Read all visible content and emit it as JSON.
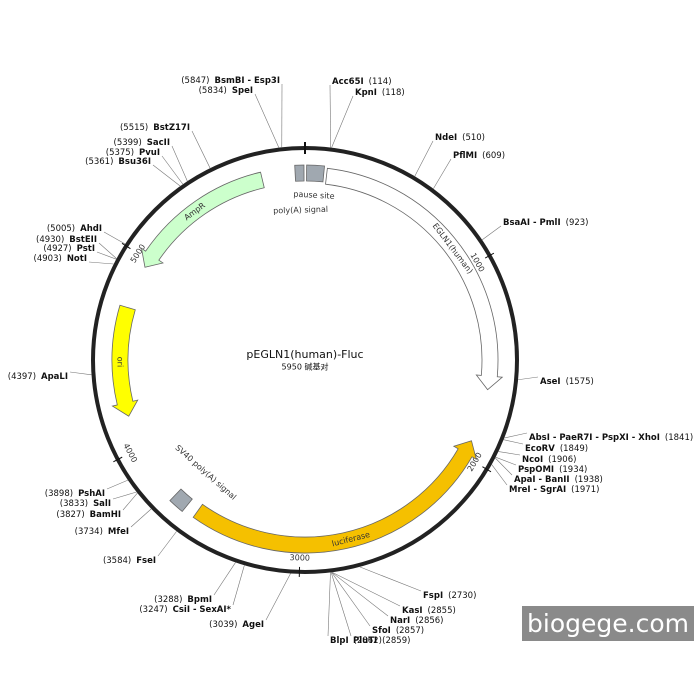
{
  "plasmid": {
    "name": "pEGLN1(human)-Fluc",
    "length": {
      "value": 5950,
      "label": "5950 碱基对"
    },
    "ticks": [
      1000,
      2000,
      3000,
      4000,
      5000
    ],
    "features": [
      {
        "name": "pause site",
        "start": 8,
        "end": 95,
        "direction": "none",
        "color": "#a0a8b0"
      },
      {
        "name": "poly(A) signal",
        "start": 5900,
        "end": 5945,
        "direction": "none",
        "color": "#a0a8b0"
      },
      {
        "name": "EGLN1(human)",
        "start": 110,
        "end": 1640,
        "direction": "forward",
        "color": "#ffffff"
      },
      {
        "name": "luciferase",
        "start": 1915,
        "end": 3560,
        "direction": "reverse",
        "color": "#f5c000"
      },
      {
        "name": "SV40 poly(A) signal",
        "start": 3620,
        "end": 3700,
        "direction": "none",
        "color": "#a0a8b0"
      },
      {
        "name": "ori",
        "start": 4170,
        "end": 4735,
        "direction": "reverse",
        "color": "#ffff00"
      },
      {
        "name": "AmpR",
        "start": 4960,
        "end": 5730,
        "direction": "reverse",
        "color": "#ccffcc"
      }
    ],
    "sites": [
      {
        "name": "Acc65I",
        "position": {
          "value": 114,
          "label": "(114)"
        }
      },
      {
        "name": "KpnI",
        "position": {
          "value": 118,
          "label": "(118)"
        }
      },
      {
        "name": "NdeI",
        "position": {
          "value": 510,
          "label": "(510)"
        }
      },
      {
        "name": "PflMI",
        "position": {
          "value": 609,
          "label": "(609)"
        }
      },
      {
        "name": "BsaAI - PmlI",
        "position": {
          "value": 923,
          "label": "(923)"
        }
      },
      {
        "name": "AseI",
        "position": {
          "value": 1575,
          "label": "(1575)"
        }
      },
      {
        "name": "AbsI - PaeR7I - PspXI - XhoI",
        "position": {
          "value": 1841,
          "label": "(1841)"
        }
      },
      {
        "name": "EcoRV",
        "position": {
          "value": 1849,
          "label": "(1849)"
        }
      },
      {
        "name": "NcoI",
        "position": {
          "value": 1906,
          "label": "(1906)"
        }
      },
      {
        "name": "PspOMI",
        "position": {
          "value": 1934,
          "label": "(1934)"
        }
      },
      {
        "name": "ApaI - BanII",
        "position": {
          "value": 1938,
          "label": "(1938)"
        }
      },
      {
        "name": "MreI - SgrAI",
        "position": {
          "value": 1971,
          "label": "(1971)"
        }
      },
      {
        "name": "FspI",
        "position": {
          "value": 2730,
          "label": "(2730)"
        }
      },
      {
        "name": "KasI",
        "position": {
          "value": 2855,
          "label": "(2855)"
        }
      },
      {
        "name": "NarI",
        "position": {
          "value": 2856,
          "label": "(2856)"
        }
      },
      {
        "name": "SfoI",
        "position": {
          "value": 2857,
          "label": "(2857)"
        }
      },
      {
        "name": "PluTI",
        "position": {
          "value": 2859,
          "label": "(2859)"
        }
      },
      {
        "name": "BlpI",
        "position": {
          "value": 2862,
          "label": "(2862)"
        }
      },
      {
        "name": "AgeI",
        "position": {
          "value": 3039,
          "label": "(3039)"
        }
      },
      {
        "name": "CsiI - SexAI*",
        "position": {
          "value": 3247,
          "label": "(3247)"
        }
      },
      {
        "name": "BpmI",
        "position": {
          "value": 3288,
          "label": "(3288)"
        }
      },
      {
        "name": "FseI",
        "position": {
          "value": 3584,
          "label": "(3584)"
        }
      },
      {
        "name": "MfeI",
        "position": {
          "value": 3734,
          "label": "(3734)"
        }
      },
      {
        "name": "BamHI",
        "position": {
          "value": 3827,
          "label": "(3827)"
        }
      },
      {
        "name": "SalI",
        "position": {
          "value": 3833,
          "label": "(3833)"
        }
      },
      {
        "name": "PshAI",
        "position": {
          "value": 3898,
          "label": "(3898)"
        }
      },
      {
        "name": "ApaLI",
        "position": {
          "value": 4397,
          "label": "(4397)"
        }
      },
      {
        "name": "NotI",
        "position": {
          "value": 4903,
          "label": "(4903)"
        }
      },
      {
        "name": "PstI",
        "position": {
          "value": 4927,
          "label": "(4927)"
        }
      },
      {
        "name": "BstEII",
        "position": {
          "value": 4930,
          "label": "(4930)"
        }
      },
      {
        "name": "AhdI",
        "position": {
          "value": 5005,
          "label": "(5005)"
        }
      },
      {
        "name": "Bsu36I",
        "position": {
          "value": 5361,
          "label": "(5361)"
        }
      },
      {
        "name": "PvuI",
        "position": {
          "value": 5375,
          "label": "(5375)"
        }
      },
      {
        "name": "SacII",
        "position": {
          "value": 5399,
          "label": "(5399)"
        }
      },
      {
        "name": "BstZ17I",
        "position": {
          "value": 5515,
          "label": "(5515)"
        }
      },
      {
        "name": "SpeI",
        "position": {
          "value": 5834,
          "label": "(5834)"
        }
      },
      {
        "name": "BsmBI - Esp3I",
        "position": {
          "value": 5847,
          "label": "(5847)"
        }
      }
    ]
  },
  "watermark": "biogege.com"
}
